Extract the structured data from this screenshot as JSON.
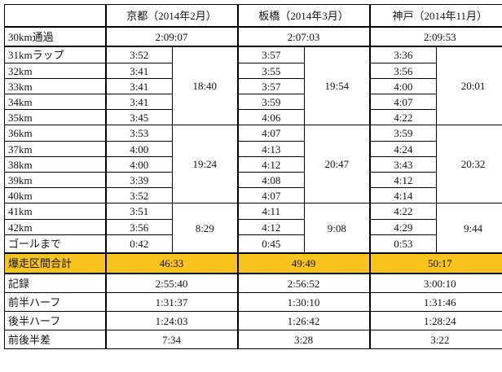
{
  "header": {
    "corner": "",
    "races": [
      "京都（2014年2月）",
      "板橋（2014年3月）",
      "神戸（2014年11月）"
    ]
  },
  "rows": {
    "pass30": {
      "label": "30km通過",
      "values": [
        "2:09:07",
        "2:07:03",
        "2:09:53"
      ]
    },
    "splits": [
      {
        "label": "31kmラップ",
        "values": [
          "3:52",
          "3:57",
          "3:36"
        ]
      },
      {
        "label": "32km",
        "values": [
          "3:41",
          "3:55",
          "3:56"
        ]
      },
      {
        "label": "33km",
        "values": [
          "3:41",
          "3:57",
          "4:00"
        ]
      },
      {
        "label": "34km",
        "values": [
          "3:41",
          "3:59",
          "4:07"
        ]
      },
      {
        "label": "35km",
        "values": [
          "3:45",
          "4:06",
          "4:22"
        ]
      },
      {
        "label": "36km",
        "values": [
          "3:53",
          "4:07",
          "3:59"
        ]
      },
      {
        "label": "37km",
        "values": [
          "4:00",
          "4:13",
          "4:24"
        ]
      },
      {
        "label": "38km",
        "values": [
          "4:00",
          "4:12",
          "3:43"
        ]
      },
      {
        "label": "39km",
        "values": [
          "3:39",
          "4:08",
          "4:12"
        ]
      },
      {
        "label": "40km",
        "values": [
          "3:52",
          "4:07",
          "4:14"
        ]
      },
      {
        "label": "41km",
        "values": [
          "3:51",
          "4:11",
          "4:22"
        ]
      },
      {
        "label": "42km",
        "values": [
          "3:56",
          "4:12",
          "4:29"
        ]
      },
      {
        "label": "ゴールまで",
        "values": [
          "0:42",
          "0:45",
          "0:53"
        ]
      }
    ],
    "block_totals": [
      [
        "18:40",
        "19:24",
        "8:29"
      ],
      [
        "19:54",
        "20:47",
        "9:08"
      ],
      [
        "20:01",
        "20:32",
        "9:44"
      ]
    ],
    "sprint_total": {
      "label": "爆走区間合計",
      "values": [
        "46:33",
        "49:49",
        "50:17"
      ]
    },
    "record": {
      "label": "記録",
      "values": [
        "2:55:40",
        "2:56:52",
        "3:00:10"
      ]
    },
    "first_half": {
      "label": "前半ハーフ",
      "values": [
        "1:31:37",
        "1:30:10",
        "1:31:46"
      ]
    },
    "second_half": {
      "label": "後半ハーフ",
      "values": [
        "1:24:03",
        "1:26:42",
        "1:28:24"
      ]
    },
    "half_diff": {
      "label": "前後半差",
      "values": [
        "7:34",
        "3:28",
        "3:22"
      ]
    }
  },
  "colors": {
    "highlight": "#f9c31e",
    "border": "#000000"
  }
}
